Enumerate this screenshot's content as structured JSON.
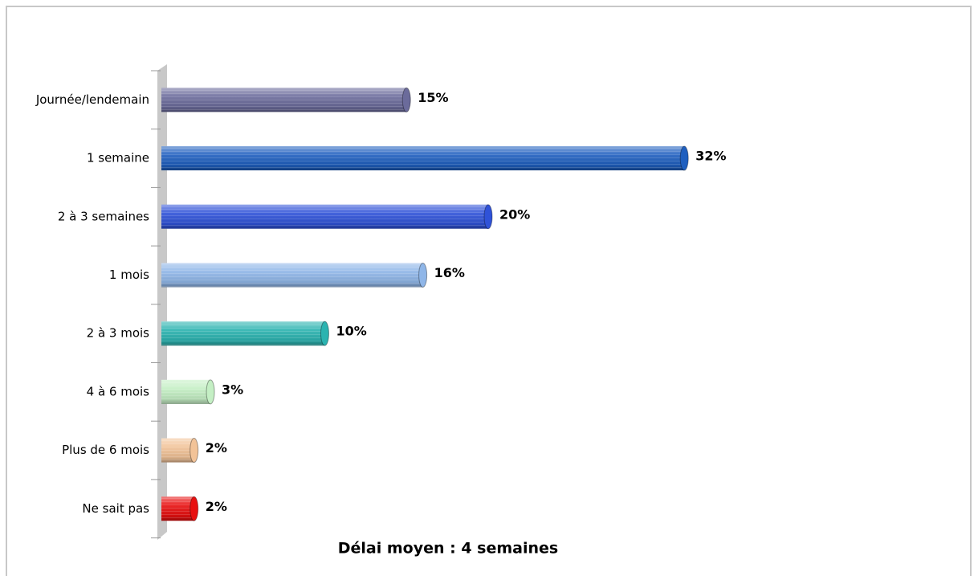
{
  "chart_data": {
    "type": "bar",
    "orientation": "horizontal",
    "categories": [
      "Journée/lendemain",
      "1 semaine",
      "2 à 3 semaines",
      "1 mois",
      "2 à 3 mois",
      "4 à 6 mois",
      "Plus de 6 mois",
      "Ne sait pas"
    ],
    "values": [
      15,
      32,
      20,
      16,
      10,
      3,
      2,
      2
    ],
    "value_labels": [
      "15%",
      "32%",
      "20%",
      "16%",
      "10%",
      "3%",
      "2%",
      "2%"
    ],
    "colors": [
      "#6b6b9b",
      "#1f5fbf",
      "#2f52d8",
      "#8fb6e8",
      "#2bb3b0",
      "#c4efc4",
      "#f2c398",
      "#e81010"
    ],
    "annotation": "Délai moyen : 4 semaines"
  }
}
